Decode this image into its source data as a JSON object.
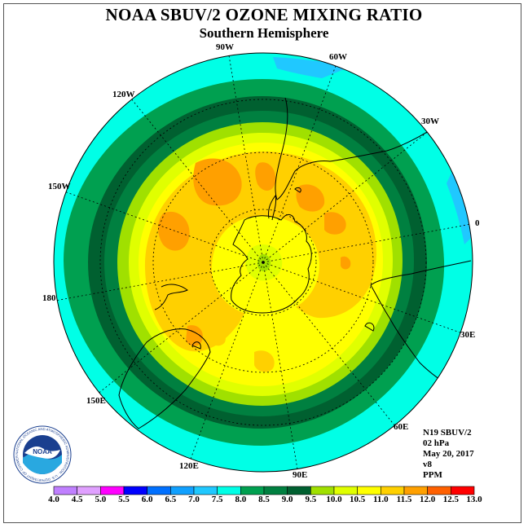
{
  "header": {
    "title": "NOAA SBUV/2 OZONE MIXING RATIO",
    "subtitle": "Southern Hemisphere"
  },
  "map": {
    "projection": "south-polar-stereographic",
    "longitude_labels": [
      "90W",
      "60W",
      "30W",
      "0",
      "30E",
      "60E",
      "90E",
      "120E",
      "150E",
      "180",
      "150W",
      "120W"
    ]
  },
  "info": {
    "satellite": "N19 SBUV/2",
    "level": "02 hPa",
    "date": "May 20, 2017",
    "version": "v8",
    "units": "PPM"
  },
  "colorbar": {
    "tick_labels": [
      "4.0",
      "4.5",
      "5.0",
      "5.5",
      "6.0",
      "6.5",
      "7.0",
      "7.5",
      "8.0",
      "8.5",
      "9.0",
      "9.5",
      "10.0",
      "10.5",
      "11.0",
      "11.5",
      "12.0",
      "12.5",
      "13.0"
    ],
    "colors": [
      "#c080ff",
      "#e0a0ff",
      "#ff00ff",
      "#0000ff",
      "#0070ff",
      "#10a0ff",
      "#20c8ff",
      "#00ffe6",
      "#00a050",
      "#008040",
      "#006030",
      "#a0e000",
      "#e0ff00",
      "#ffff00",
      "#ffd000",
      "#ffa000",
      "#ff6000",
      "#ff0000",
      "#906040"
    ]
  },
  "logo": {
    "text": "NOAA",
    "ring_text": "NATIONAL OCEANIC AND ATMOSPHERIC ADMINISTRATION · U.S. DEPARTMENT OF COMMERCE"
  }
}
